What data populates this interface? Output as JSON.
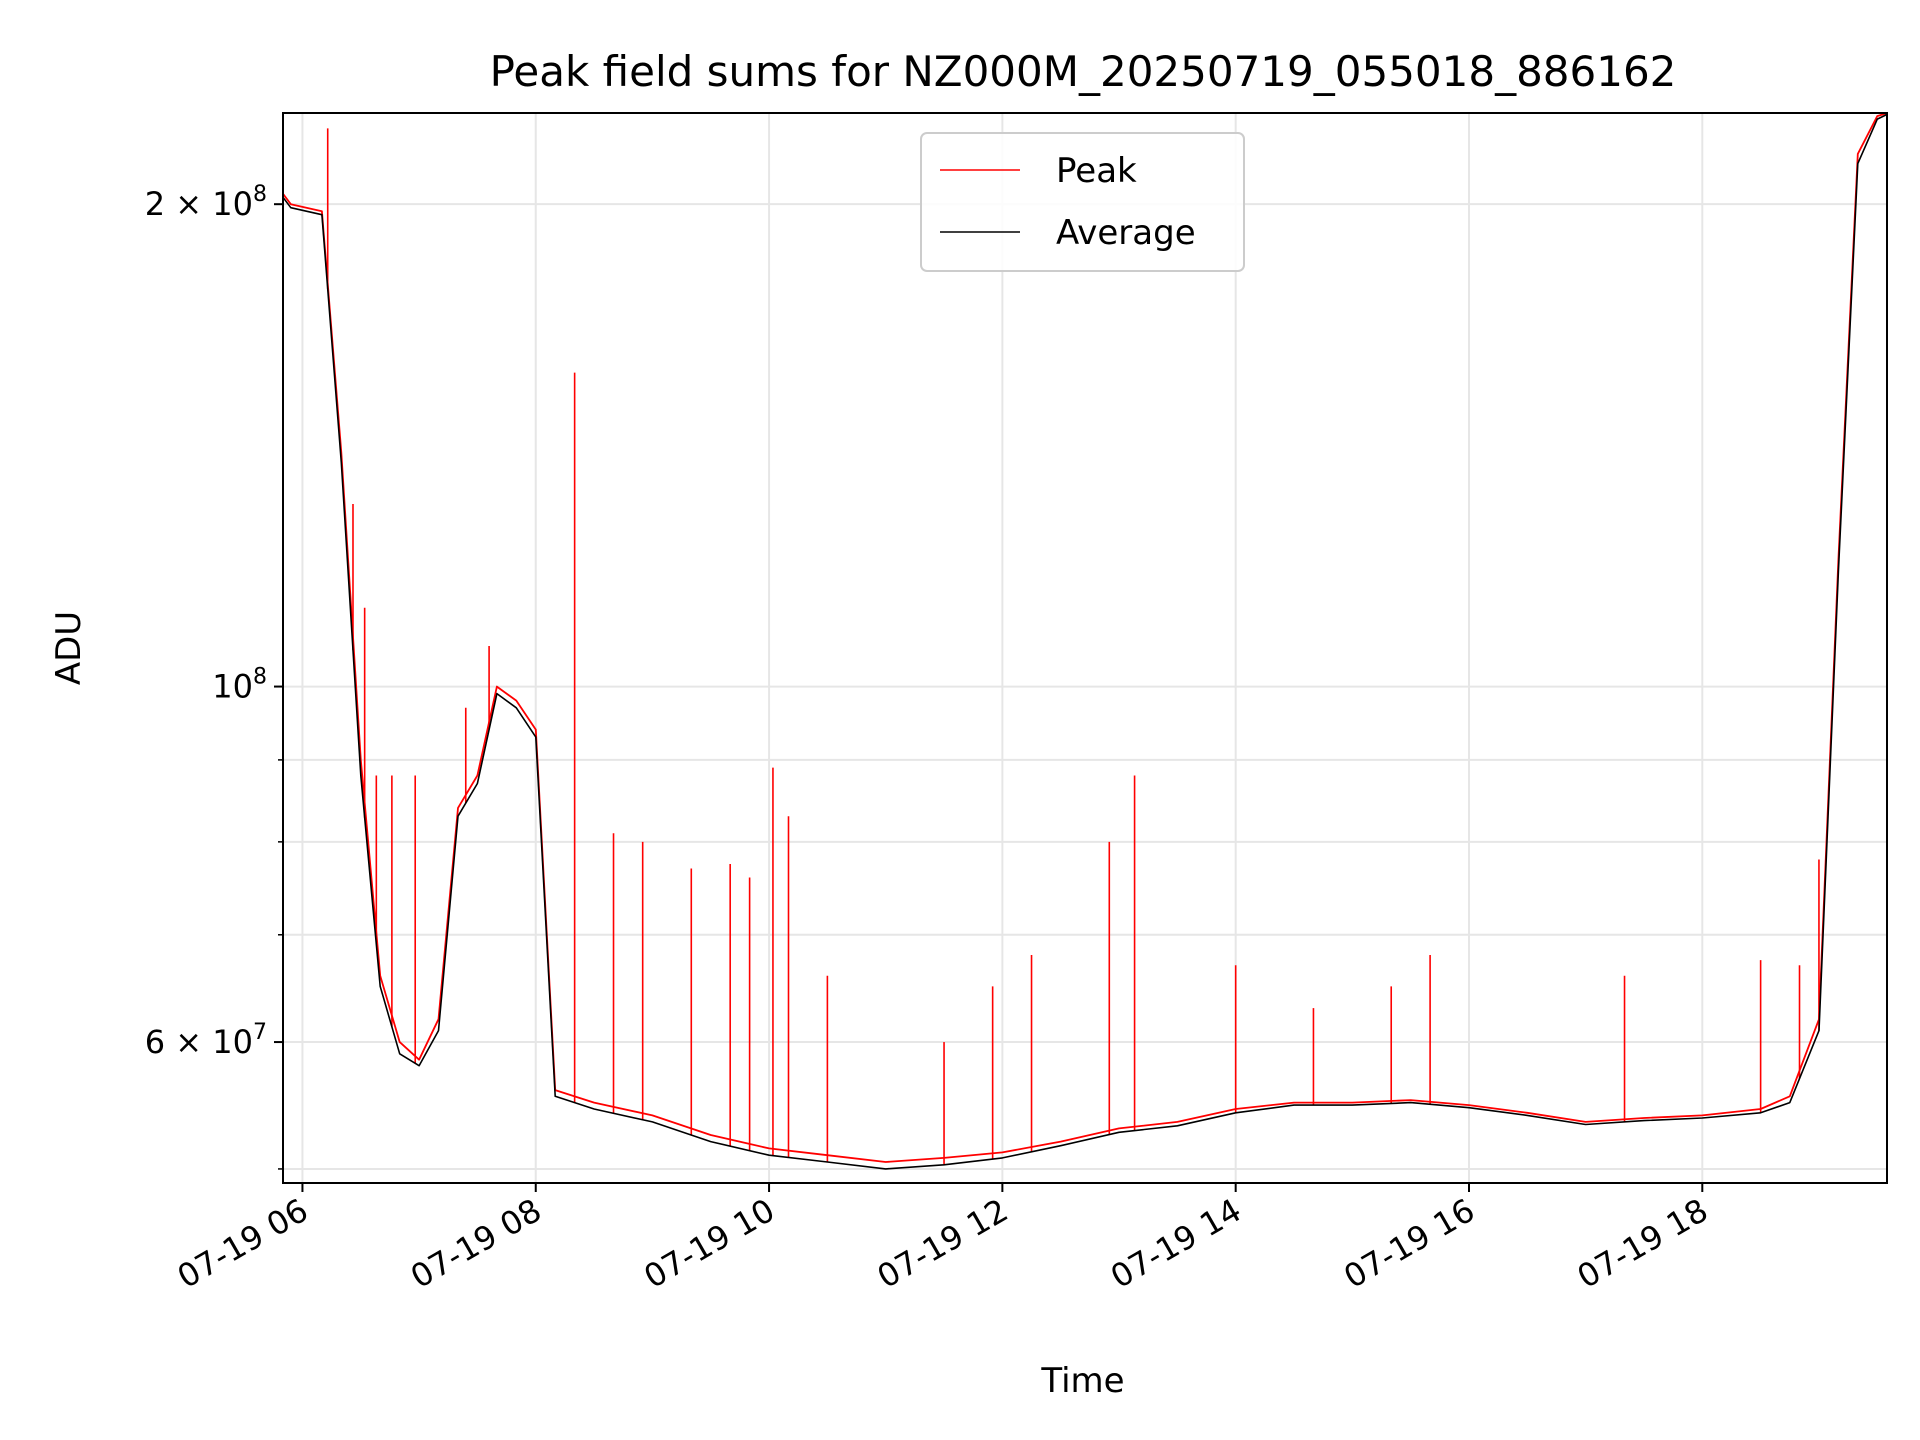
{
  "chart_data": {
    "type": "line",
    "title": "Peak field sums for NZ000M_20250719_055018_886162",
    "xlabel": "Time",
    "ylabel": "ADU",
    "y_scale": "log",
    "ylim": [
      49000000,
      228000000
    ],
    "xlim": [
      "2025-07-19 05:50",
      "2025-07-19 19:35"
    ],
    "grid": true,
    "legend_position": "top-center",
    "x_ticks": [
      {
        "value": "2025-07-19 06:00",
        "label": "07-19 06"
      },
      {
        "value": "2025-07-19 08:00",
        "label": "07-19 08"
      },
      {
        "value": "2025-07-19 10:00",
        "label": "07-19 10"
      },
      {
        "value": "2025-07-19 12:00",
        "label": "07-19 12"
      },
      {
        "value": "2025-07-19 14:00",
        "label": "07-19 14"
      },
      {
        "value": "2025-07-19 16:00",
        "label": "07-19 16"
      },
      {
        "value": "2025-07-19 18:00",
        "label": "07-19 18"
      }
    ],
    "y_ticks": [
      {
        "value": 200000000,
        "label_mantissa": "2",
        "label_times": "×",
        "label_base": "10",
        "label_exp": "8"
      },
      {
        "value": 100000000,
        "label_mantissa": "",
        "label_times": "",
        "label_base": "10",
        "label_exp": "8"
      },
      {
        "value": 60000000,
        "label_mantissa": "6",
        "label_times": "×",
        "label_base": "10",
        "label_exp": "7"
      }
    ],
    "y_minor_ticks": [
      50000000,
      70000000,
      80000000,
      90000000
    ],
    "series": [
      {
        "name": "Peak",
        "color": "#ff0000",
        "x": [
          "2025-07-19 05:50",
          "2025-07-19 05:54",
          "2025-07-19 06:10",
          "2025-07-19 06:20",
          "2025-07-19 06:30",
          "2025-07-19 06:40",
          "2025-07-19 06:50",
          "2025-07-19 07:00",
          "2025-07-19 07:10",
          "2025-07-19 07:20",
          "2025-07-19 07:30",
          "2025-07-19 07:40",
          "2025-07-19 07:50",
          "2025-07-19 08:00",
          "2025-07-19 08:10",
          "2025-07-19 08:30",
          "2025-07-19 09:00",
          "2025-07-19 09:30",
          "2025-07-19 10:00",
          "2025-07-19 10:30",
          "2025-07-19 11:00",
          "2025-07-19 11:30",
          "2025-07-19 12:00",
          "2025-07-19 12:30",
          "2025-07-19 13:00",
          "2025-07-19 13:30",
          "2025-07-19 14:00",
          "2025-07-19 14:30",
          "2025-07-19 15:00",
          "2025-07-19 15:30",
          "2025-07-19 16:00",
          "2025-07-19 16:30",
          "2025-07-19 17:00",
          "2025-07-19 17:30",
          "2025-07-19 18:00",
          "2025-07-19 18:30",
          "2025-07-19 18:45",
          "2025-07-19 19:00",
          "2025-07-19 19:10",
          "2025-07-19 19:20",
          "2025-07-19 19:30",
          "2025-07-19 19:35"
        ],
        "y": [
          203000000,
          200000000,
          198000000,
          140000000,
          90000000,
          66000000,
          60000000,
          58500000,
          62000000,
          84000000,
          88000000,
          100000000,
          98000000,
          94000000,
          56000000,
          55000000,
          54000000,
          52500000,
          51500000,
          51000000,
          50500000,
          50800000,
          51200000,
          52000000,
          53000000,
          53500000,
          54500000,
          55000000,
          55000000,
          55200000,
          54800000,
          54200000,
          53500000,
          53800000,
          54000000,
          54500000,
          55500000,
          62000000,
          120000000,
          215000000,
          227000000,
          228000000
        ]
      },
      {
        "name": "Average",
        "color": "#000000",
        "x": [
          "2025-07-19 05:50",
          "2025-07-19 05:54",
          "2025-07-19 06:10",
          "2025-07-19 06:20",
          "2025-07-19 06:30",
          "2025-07-19 06:40",
          "2025-07-19 06:50",
          "2025-07-19 07:00",
          "2025-07-19 07:10",
          "2025-07-19 07:20",
          "2025-07-19 07:30",
          "2025-07-19 07:40",
          "2025-07-19 07:50",
          "2025-07-19 08:00",
          "2025-07-19 08:10",
          "2025-07-19 08:30",
          "2025-07-19 09:00",
          "2025-07-19 09:30",
          "2025-07-19 10:00",
          "2025-07-19 10:30",
          "2025-07-19 11:00",
          "2025-07-19 11:30",
          "2025-07-19 12:00",
          "2025-07-19 12:30",
          "2025-07-19 13:00",
          "2025-07-19 13:30",
          "2025-07-19 14:00",
          "2025-07-19 14:30",
          "2025-07-19 15:00",
          "2025-07-19 15:30",
          "2025-07-19 16:00",
          "2025-07-19 16:30",
          "2025-07-19 17:00",
          "2025-07-19 17:30",
          "2025-07-19 18:00",
          "2025-07-19 18:30",
          "2025-07-19 18:45",
          "2025-07-19 19:00",
          "2025-07-19 19:10",
          "2025-07-19 19:20",
          "2025-07-19 19:30",
          "2025-07-19 19:35"
        ],
        "y": [
          202000000,
          199000000,
          197000000,
          138000000,
          88000000,
          65000000,
          59000000,
          58000000,
          61000000,
          83000000,
          87000000,
          99000000,
          97000000,
          93000000,
          55500000,
          54500000,
          53500000,
          52000000,
          51000000,
          50500000,
          50000000,
          50300000,
          50800000,
          51700000,
          52700000,
          53200000,
          54200000,
          54800000,
          54800000,
          55000000,
          54600000,
          54000000,
          53300000,
          53600000,
          53800000,
          54200000,
          55000000,
          61000000,
          118000000,
          212000000,
          226000000,
          227500000
        ]
      }
    ],
    "spikes": [
      {
        "x": "2025-07-19 06:13",
        "y": 223000000
      },
      {
        "x": "2025-07-19 06:26",
        "y": 130000000
      },
      {
        "x": "2025-07-19 06:32",
        "y": 112000000
      },
      {
        "x": "2025-07-19 06:38",
        "y": 88000000
      },
      {
        "x": "2025-07-19 06:46",
        "y": 88000000
      },
      {
        "x": "2025-07-19 06:58",
        "y": 88000000
      },
      {
        "x": "2025-07-19 07:24",
        "y": 97000000
      },
      {
        "x": "2025-07-19 07:36",
        "y": 106000000
      },
      {
        "x": "2025-07-19 08:20",
        "y": 157000000
      },
      {
        "x": "2025-07-19 08:40",
        "y": 81000000
      },
      {
        "x": "2025-07-19 08:55",
        "y": 80000000
      },
      {
        "x": "2025-07-19 09:20",
        "y": 77000000
      },
      {
        "x": "2025-07-19 09:40",
        "y": 77500000
      },
      {
        "x": "2025-07-19 09:50",
        "y": 76000000
      },
      {
        "x": "2025-07-19 10:02",
        "y": 89000000
      },
      {
        "x": "2025-07-19 10:10",
        "y": 83000000
      },
      {
        "x": "2025-07-19 10:30",
        "y": 66000000
      },
      {
        "x": "2025-07-19 11:30",
        "y": 60000000
      },
      {
        "x": "2025-07-19 11:55",
        "y": 65000000
      },
      {
        "x": "2025-07-19 12:15",
        "y": 68000000
      },
      {
        "x": "2025-07-19 12:55",
        "y": 80000000
      },
      {
        "x": "2025-07-19 13:08",
        "y": 88000000
      },
      {
        "x": "2025-07-19 14:00",
        "y": 67000000
      },
      {
        "x": "2025-07-19 14:40",
        "y": 63000000
      },
      {
        "x": "2025-07-19 15:20",
        "y": 65000000
      },
      {
        "x": "2025-07-19 15:40",
        "y": 68000000
      },
      {
        "x": "2025-07-19 17:20",
        "y": 66000000
      },
      {
        "x": "2025-07-19 18:30",
        "y": 67500000
      },
      {
        "x": "2025-07-19 18:50",
        "y": 67000000
      },
      {
        "x": "2025-07-19 19:00",
        "y": 78000000
      }
    ]
  },
  "legend": {
    "items": [
      {
        "label": "Peak",
        "color": "#ff0000"
      },
      {
        "label": "Average",
        "color": "#000000"
      }
    ]
  }
}
